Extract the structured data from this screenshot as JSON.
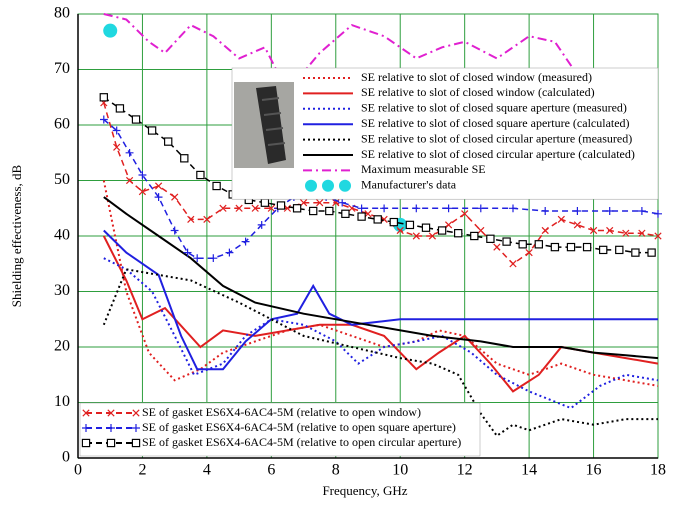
{
  "chart_data": {
    "type": "line",
    "xlabel": "Frequency, GHz",
    "ylabel": "Shielding effectiveness, dB",
    "xlim": [
      0,
      18
    ],
    "ylim": [
      0,
      80
    ],
    "xticks": [
      0,
      2,
      4,
      6,
      8,
      10,
      12,
      14,
      16,
      18
    ],
    "yticks": [
      0,
      10,
      20,
      30,
      40,
      50,
      60,
      70,
      80
    ],
    "grid": true,
    "grid_color": "#2e9e3e",
    "series": [
      {
        "name": "SE relative to slot of closed window (measured)",
        "color": "#e02020",
        "linestyle": "dotted",
        "marker": "none",
        "x": [
          0.8,
          1.5,
          2.2,
          3,
          3.8,
          4.5,
          5.5,
          6.5,
          7.5,
          8.5,
          9.5,
          10.5,
          11.2,
          12,
          13,
          14,
          15,
          16,
          17,
          18
        ],
        "values": [
          50,
          30,
          19,
          14,
          16,
          19,
          21,
          23,
          24,
          22,
          20,
          21,
          23,
          22,
          17,
          15,
          17,
          15,
          14,
          13
        ]
      },
      {
        "name": "SE relative to slot of closed window (calculated)",
        "color": "#e02020",
        "linestyle": "solid",
        "marker": "none",
        "x": [
          0.8,
          1.5,
          2,
          2.7,
          3.8,
          4.5,
          5.5,
          6.5,
          7.5,
          8.5,
          9.5,
          10.5,
          11.2,
          12,
          12.8,
          13.5,
          14.3,
          15,
          16,
          17,
          18
        ],
        "values": [
          40,
          32,
          25,
          27,
          20,
          23,
          22,
          23,
          24,
          24,
          22,
          16,
          19,
          22,
          17,
          12,
          15,
          20,
          19,
          18,
          17
        ]
      },
      {
        "name": "SE relative to slot of closed square aperture (measured)",
        "color": "#2020e0",
        "linestyle": "dotted",
        "marker": "none",
        "x": [
          0.8,
          1.5,
          2.3,
          3,
          3.6,
          4.5,
          5.2,
          6,
          7,
          8,
          8.7,
          9.5,
          10.5,
          11.3,
          12.2,
          13,
          14,
          15.3,
          16.2,
          17,
          18
        ],
        "values": [
          36,
          34,
          30,
          22,
          15,
          17,
          22,
          25,
          24,
          21,
          17,
          20,
          21,
          22,
          19,
          15,
          12,
          9,
          13,
          15,
          14
        ]
      },
      {
        "name": "SE relative to slot of closed square aperture (calculated)",
        "color": "#2020e0",
        "linestyle": "solid",
        "marker": "none",
        "x": [
          0.8,
          1.5,
          2.5,
          3.2,
          3.7,
          4.5,
          5.2,
          6,
          6.8,
          7.3,
          7.8,
          8.5,
          10,
          12,
          14,
          16,
          18
        ],
        "values": [
          41,
          37,
          33,
          22,
          16,
          16,
          21,
          25,
          26,
          31,
          26,
          24,
          25,
          25,
          25,
          25,
          25
        ]
      },
      {
        "name": "SE relative to slot of closed circular aperture (measured)",
        "color": "#000000",
        "linestyle": "dotted",
        "marker": "none",
        "x": [
          0.8,
          1.5,
          2.5,
          3.5,
          5,
          6,
          7,
          8.5,
          10,
          11,
          11.8,
          12.5,
          13,
          13.5,
          14,
          15,
          16,
          17,
          18
        ],
        "values": [
          24,
          34,
          33,
          32,
          28,
          25,
          22,
          20,
          18,
          17,
          15,
          8,
          4,
          6,
          5,
          7,
          6,
          7,
          7
        ]
      },
      {
        "name": "SE relative to slot of closed circular aperture (calculated)",
        "color": "#000000",
        "linestyle": "solid",
        "marker": "none",
        "x": [
          0.8,
          1.5,
          2.5,
          3.5,
          4.5,
          5.5,
          7,
          9,
          11,
          12.5,
          13.5,
          15,
          16,
          17,
          18
        ],
        "values": [
          47,
          44,
          40,
          36,
          31,
          28,
          26,
          24,
          22,
          21,
          20,
          20,
          19,
          18.5,
          18
        ]
      },
      {
        "name": "Maximum measurable SE",
        "color": "#e020d0",
        "linestyle": "dashdot",
        "marker": "none",
        "x": [
          0.8,
          1.5,
          2.2,
          2.7,
          3.5,
          4.2,
          5,
          5.8,
          6.5,
          7.5,
          8.5,
          9.5,
          10.5,
          11.3,
          12,
          13,
          14,
          14.8,
          15.5,
          16.2,
          17,
          17.8
        ],
        "values": [
          80,
          79,
          75,
          73,
          78,
          76,
          72,
          74,
          66,
          73,
          78,
          76,
          72,
          74,
          75,
          72,
          76,
          75,
          69,
          62,
          65,
          60
        ]
      },
      {
        "name": "Manufacturer's data",
        "color": "#20d8e0",
        "linestyle": "none",
        "marker": "circle",
        "x": [
          1,
          10
        ],
        "values": [
          77,
          42
        ]
      },
      {
        "name": "SE of gasket ES6X4-6AC4-5M (relative to open window)",
        "color": "#e02020",
        "linestyle": "dashed",
        "marker": "x",
        "x": [
          0.8,
          1.2,
          1.6,
          2,
          2.5,
          3,
          3.5,
          4,
          4.5,
          5,
          5.5,
          6,
          6.5,
          7,
          7.5,
          8,
          8.5,
          9,
          9.5,
          10,
          10.5,
          11,
          11.5,
          12,
          12.5,
          13,
          13.5,
          14,
          14.5,
          15,
          15.5,
          16,
          16.5,
          17,
          17.5,
          18
        ],
        "values": [
          64,
          56,
          50,
          48,
          49,
          47,
          43,
          43,
          45,
          45,
          45,
          45,
          45,
          46,
          46,
          46,
          45,
          44,
          43,
          41,
          40,
          40,
          42,
          44,
          41,
          38,
          35,
          37,
          41,
          43,
          42,
          41,
          41,
          40.5,
          40.5,
          40
        ]
      },
      {
        "name": "SE of gasket ES6X4-6AC4-5M (relative to open square aperture)",
        "color": "#2020e0",
        "linestyle": "dashed",
        "marker": "+",
        "x": [
          0.8,
          1.2,
          1.6,
          2,
          2.5,
          3,
          3.4,
          3.7,
          4.2,
          4.7,
          5.2,
          5.7,
          6.2,
          6.7,
          7.2,
          7.7,
          8.2,
          8.8,
          9.5,
          10.5,
          11.5,
          12.5,
          13.5,
          14.5,
          15.5,
          16.5,
          17.5,
          18
        ],
        "values": [
          61,
          59,
          55,
          51,
          47,
          41,
          37,
          36,
          36,
          37,
          39,
          42,
          45,
          47,
          48,
          47,
          46,
          45,
          45,
          45,
          45,
          45,
          45,
          44.5,
          44.5,
          44.5,
          44.5,
          44
        ]
      },
      {
        "name": "SE of gasket ES6X4-6AC4-5M (relative to open circular aperture)",
        "color": "#000000",
        "linestyle": "dashed",
        "marker": "square",
        "x": [
          0.8,
          1.3,
          1.8,
          2.3,
          2.8,
          3.3,
          3.8,
          4.3,
          4.8,
          5.3,
          5.8,
          6.3,
          6.8,
          7.3,
          7.8,
          8.3,
          8.8,
          9.3,
          9.8,
          10.3,
          10.8,
          11.3,
          11.8,
          12.3,
          12.8,
          13.3,
          13.8,
          14.3,
          14.8,
          15.3,
          15.8,
          16.3,
          16.8,
          17.3,
          17.8
        ],
        "values": [
          65,
          63,
          61,
          59,
          57,
          54,
          51,
          49,
          47.5,
          46.5,
          46,
          45.5,
          45,
          44.5,
          44.5,
          44,
          43.5,
          43,
          42.5,
          42,
          41.5,
          41,
          40.5,
          40,
          39.5,
          39,
          38.5,
          38.5,
          38,
          38,
          38,
          37.5,
          37.5,
          37,
          37
        ]
      }
    ]
  }
}
